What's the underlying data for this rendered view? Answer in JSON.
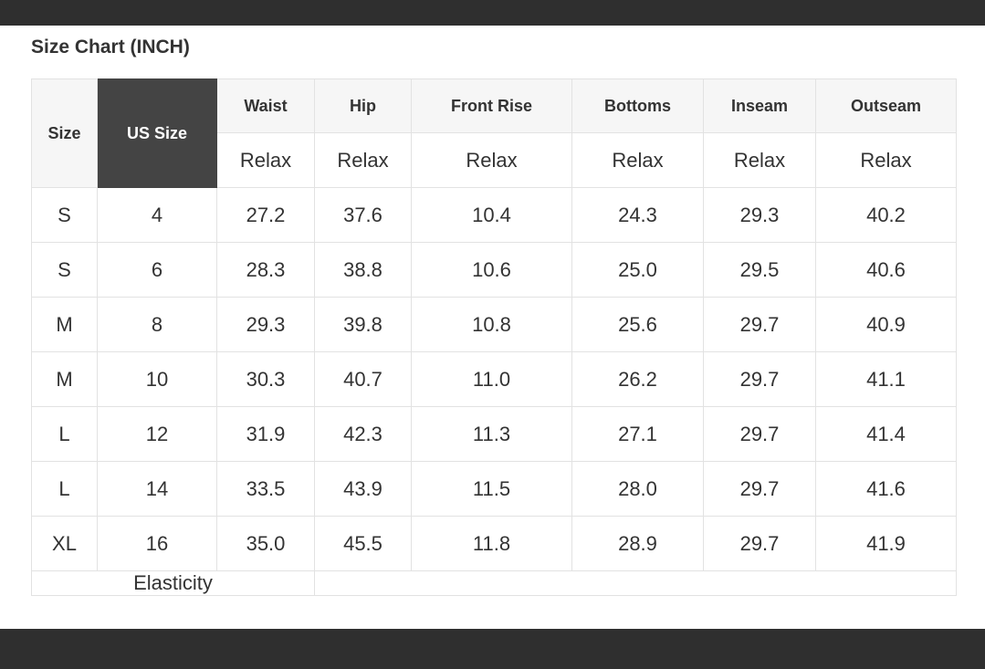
{
  "title": "Size Chart (INCH)",
  "columns": {
    "size": "Size",
    "us_size": "US Size",
    "measures": [
      "Waist",
      "Hip",
      "Front Rise",
      "Bottoms",
      "Inseam",
      "Outseam"
    ],
    "sub_label": "Relax"
  },
  "rows": [
    [
      "S",
      "4",
      "27.2",
      "37.6",
      "10.4",
      "24.3",
      "29.3",
      "40.2"
    ],
    [
      "S",
      "6",
      "28.3",
      "38.8",
      "10.6",
      "25.0",
      "29.5",
      "40.6"
    ],
    [
      "M",
      "8",
      "29.3",
      "39.8",
      "10.8",
      "25.6",
      "29.7",
      "40.9"
    ],
    [
      "M",
      "10",
      "30.3",
      "40.7",
      "11.0",
      "26.2",
      "29.7",
      "41.1"
    ],
    [
      "L",
      "12",
      "31.9",
      "42.3",
      "11.3",
      "27.1",
      "29.7",
      "41.4"
    ],
    [
      "L",
      "14",
      "33.5",
      "43.9",
      "11.5",
      "28.0",
      "29.7",
      "41.6"
    ],
    [
      "XL",
      "16",
      "35.0",
      "45.5",
      "11.8",
      "28.9",
      "29.7",
      "41.9"
    ]
  ],
  "footer": {
    "label": "Elasticity",
    "value": ""
  },
  "colors": {
    "header_dark": "#444444",
    "header_light": "#f6f6f6",
    "bar": "#2f2f2f"
  }
}
